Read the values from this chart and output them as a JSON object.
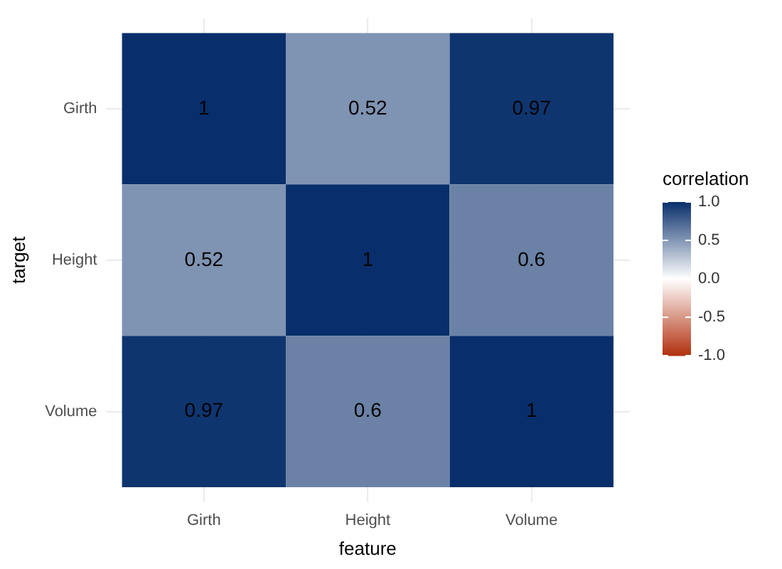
{
  "chart_data": {
    "type": "heatmap",
    "xlabel": "feature",
    "ylabel": "target",
    "legend_title": "correlation",
    "categories": [
      "Girth",
      "Height",
      "Volume"
    ],
    "y_categories": [
      "Girth",
      "Height",
      "Volume"
    ],
    "cells": [
      [
        1,
        0.52,
        0.97
      ],
      [
        0.52,
        1,
        0.6
      ],
      [
        0.97,
        0.6,
        1
      ]
    ],
    "clim": [
      -1,
      1
    ],
    "cticks": [
      {
        "value": 1,
        "label": "1.0"
      },
      {
        "value": 0.5,
        "label": "0.5"
      },
      {
        "value": 0,
        "label": "0.0"
      },
      {
        "value": -0.5,
        "label": "-0.5"
      },
      {
        "value": -1,
        "label": "-1.0"
      }
    ],
    "data_labels": true,
    "grid": true
  }
}
